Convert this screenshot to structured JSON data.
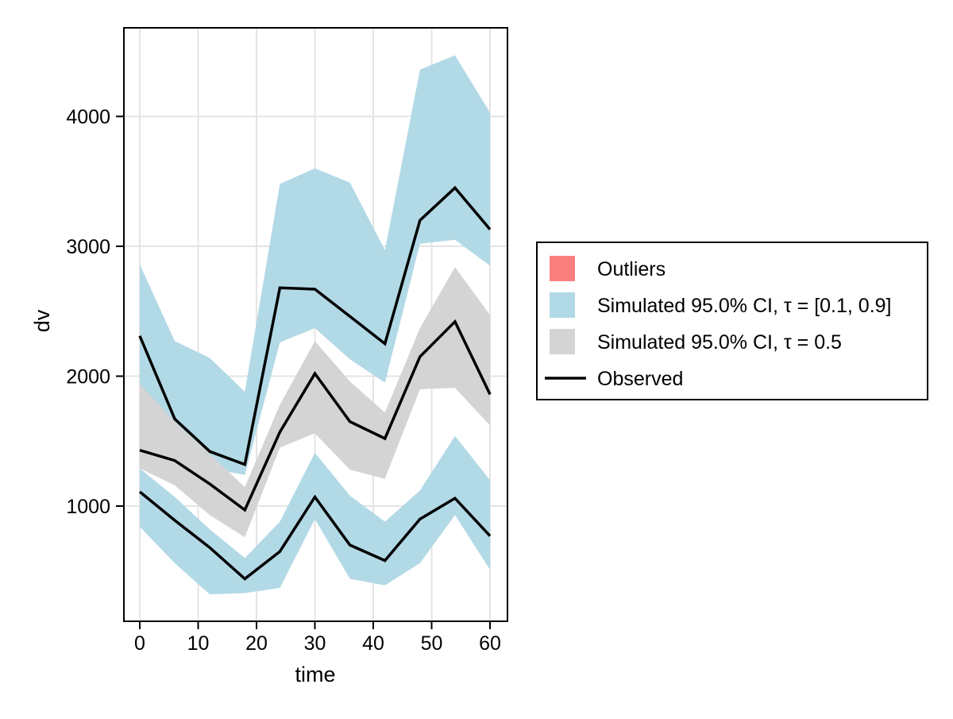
{
  "figure": {
    "background": "#ffffff",
    "grid_color": "#e4e4e4",
    "spine_color": "#000000",
    "observed_line_color": "#000000"
  },
  "legend": {
    "border_color": "#000000",
    "background": "#ffffff",
    "items": [
      {
        "label": "Outliers",
        "swatch": "square",
        "color": "#fa7f7f"
      },
      {
        "label": "Simulated 95.0% CI, τ = [0.1, 0.9]",
        "swatch": "square",
        "color": "#b2d9e6"
      },
      {
        "label": "Simulated 95.0% CI, τ = 0.5",
        "swatch": "square",
        "color": "#d4d4d4"
      },
      {
        "label": "Observed",
        "swatch": "line",
        "color": "#000000"
      }
    ]
  },
  "chart_data": {
    "type": "area",
    "subtype": "visual-predictive-check",
    "title": "",
    "xlabel": "time",
    "ylabel": "dv",
    "xlim": [
      -2.72,
      62.99
    ],
    "ylim": [
      113,
      4682
    ],
    "x_ticks": [
      0,
      10,
      20,
      30,
      40,
      50,
      60
    ],
    "y_ticks": [
      1000,
      2000,
      3000,
      4000
    ],
    "grid": true,
    "legend_position": "right-outside",
    "x": [
      0,
      6,
      12,
      18,
      24,
      30,
      36,
      42,
      48,
      54,
      60
    ],
    "series": [
      {
        "id": "sim-ci-tau-0.9-band",
        "name": "Simulated 95.0% CI, τ = 0.9 (upper blue band)",
        "type": "band",
        "color": "#b2d9e6",
        "hi": [
          2860,
          2270,
          2140,
          1880,
          3480,
          3600,
          3490,
          2970,
          4360,
          4470,
          4030
        ],
        "lo": [
          1945,
          1450,
          1290,
          1240,
          2260,
          2370,
          2130,
          1950,
          3020,
          3050,
          2850
        ]
      },
      {
        "id": "sim-ci-tau-0.5-band",
        "name": "Simulated 95.0% CI, τ = 0.5 (gray band)",
        "type": "band",
        "color": "#d4d4d4",
        "hi": [
          1940,
          1650,
          1400,
          1145,
          1780,
          2270,
          1960,
          1720,
          2370,
          2840,
          2470
        ],
        "lo": [
          1290,
          1160,
          930,
          760,
          1450,
          1560,
          1280,
          1210,
          1900,
          1910,
          1620
        ]
      },
      {
        "id": "sim-ci-tau-0.1-band",
        "name": "Simulated 95.0% CI, τ = 0.1 (lower blue band)",
        "type": "band",
        "color": "#b2d9e6",
        "hi": [
          1290,
          1070,
          820,
          600,
          880,
          1410,
          1080,
          880,
          1120,
          1540,
          1200
        ],
        "lo": [
          840,
          560,
          320,
          330,
          370,
          900,
          440,
          390,
          560,
          930,
          510
        ]
      },
      {
        "id": "observed-90th",
        "name": "Observed 90th percentile",
        "type": "line",
        "color": "#000000",
        "values": [
          2310,
          1670,
          1420,
          1320,
          2680,
          2670,
          2460,
          2250,
          3200,
          3450,
          3130
        ]
      },
      {
        "id": "observed-median",
        "name": "Observed median",
        "type": "line",
        "color": "#000000",
        "values": [
          1430,
          1350,
          1170,
          970,
          1570,
          2020,
          1650,
          1520,
          2150,
          2420,
          1860
        ]
      },
      {
        "id": "observed-10th",
        "name": "Observed 10th percentile",
        "type": "line",
        "color": "#000000",
        "values": [
          1110,
          890,
          680,
          440,
          650,
          1070,
          700,
          580,
          900,
          1060,
          770
        ]
      }
    ],
    "outliers": []
  }
}
